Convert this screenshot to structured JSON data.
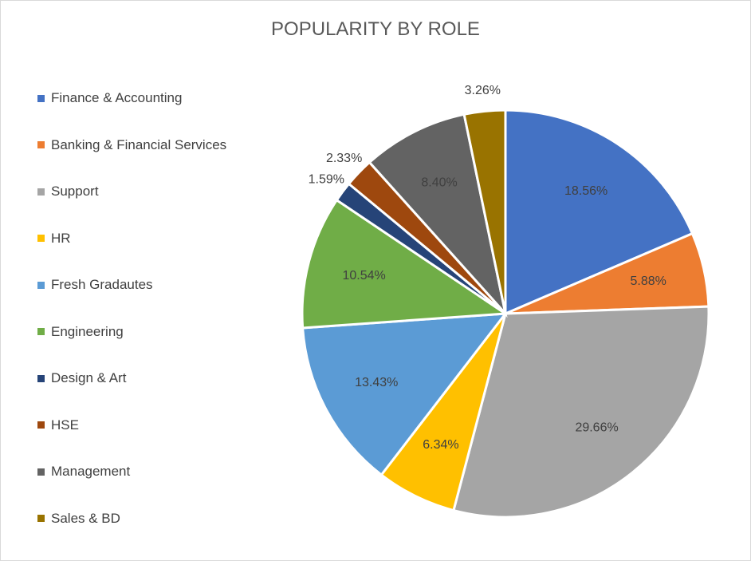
{
  "chart_data": {
    "type": "pie",
    "title": "POPULARITY BY ROLE",
    "legend_position": "left",
    "categories": [
      "Finance & Accounting",
      "Banking & Financial Services",
      "Support",
      "HR",
      "Fresh Gradautes",
      "Engineering",
      "Design & Art",
      "HSE",
      "Management",
      "Sales & BD"
    ],
    "values": [
      18.56,
      5.88,
      29.66,
      6.34,
      13.43,
      10.54,
      1.59,
      2.33,
      8.4,
      3.26
    ],
    "labels": [
      "18.56%",
      "5.88%",
      "29.66%",
      "6.34%",
      "13.43%",
      "10.54%",
      "1.59%",
      "2.33%",
      "8.40%",
      "3.26%"
    ],
    "colors": [
      "#4472C4",
      "#ED7D31",
      "#A5A5A5",
      "#FFC000",
      "#5B9BD5",
      "#70AD47",
      "#264478",
      "#9E480E",
      "#636363",
      "#997300"
    ]
  }
}
